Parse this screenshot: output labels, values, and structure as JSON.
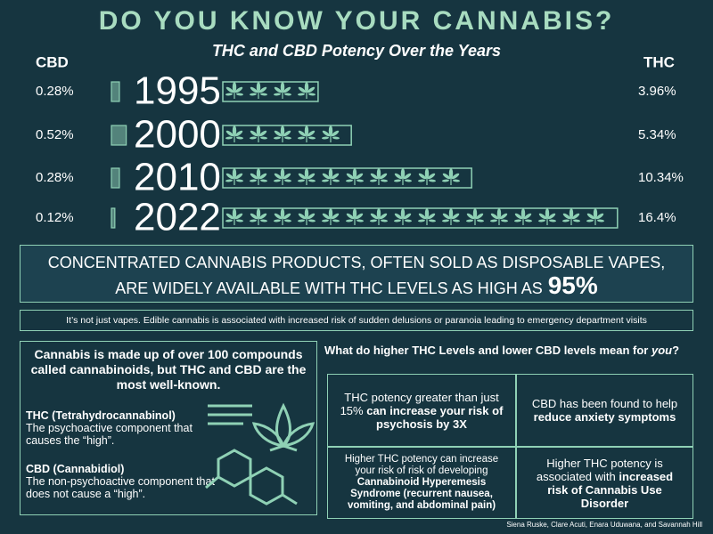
{
  "header": {
    "title": "DO YOU KNOW YOUR CANNABIS?"
  },
  "chart_data": {
    "type": "pictogram-bar",
    "title": "THC and CBD Potency Over the Years",
    "categories": [
      "1995",
      "2000",
      "2010",
      "2022"
    ],
    "series": [
      {
        "name": "CBD",
        "color": "#8fd1b5",
        "values": [
          0.28,
          0.52,
          0.28,
          0.12
        ],
        "value_labels": [
          "0.28%",
          "0.52%",
          "0.28%",
          "0.12%"
        ]
      },
      {
        "name": "THC",
        "color": "#8fd1b5",
        "values": [
          3.96,
          5.34,
          10.34,
          16.4
        ],
        "value_labels": [
          "3.96%",
          "5.34%",
          "10.34%",
          "16.4%"
        ]
      }
    ]
  },
  "banner": {
    "lines": [
      "CONCENTRATED CANNABIS PRODUCTS, OFTEN SOLD AS DISPOSABLE VAPES,",
      "ARE WIDELY AVAILABLE WITH THC LEVELS AS HIGH AS"
    ],
    "highlight": "95%"
  },
  "note": "It’s not just vapes. Edible cannabis is associated with increased risk of sudden delusions or paranoia leading to emergency department visits",
  "info": {
    "heading": "Cannabis is made up of over 100 compounds called cannabinoids, but THC and CBD are the most well-known.",
    "terms": [
      {
        "term": "THC (Tetrahydrocannabinol)",
        "definition": "The psychoactive component that causes the “high”."
      },
      {
        "term": "CBD (Cannabidiol)",
        "definition": "The non-psychoactive component that does not cause a “high”."
      }
    ]
  },
  "effects": {
    "heading": [
      {
        "text": "What do higher THC Levels and lower CBD levels mean for ",
        "italic": false
      },
      {
        "text": "you",
        "italic": true
      },
      {
        "text": "?",
        "italic": false
      }
    ],
    "cells": [
      [
        {
          "text": "THC potency greater than just 15% ",
          "bold": false
        },
        {
          "text": "can increase your risk of psychosis by 3X",
          "bold": true
        }
      ],
      [
        {
          "text": "CBD has been found to help ",
          "bold": false
        },
        {
          "text": "reduce anxiety symptoms",
          "bold": true
        }
      ],
      [
        {
          "text": "Higher THC potency can increase your risk of risk of developing ",
          "bold": false
        },
        {
          "text": "Cannabinoid Hyperemesis Syndrome (recurrent nausea, vomiting, and abdominal pain)",
          "bold": true
        }
      ],
      [
        {
          "text": "Higher THC potency is associated with ",
          "bold": false
        },
        {
          "text": "increased risk of Cannabis Use Disorder",
          "bold": true
        }
      ]
    ]
  },
  "credits": "Siena Ruske, Clare Acuti, Enara Uduwana, and Savannah Hill"
}
